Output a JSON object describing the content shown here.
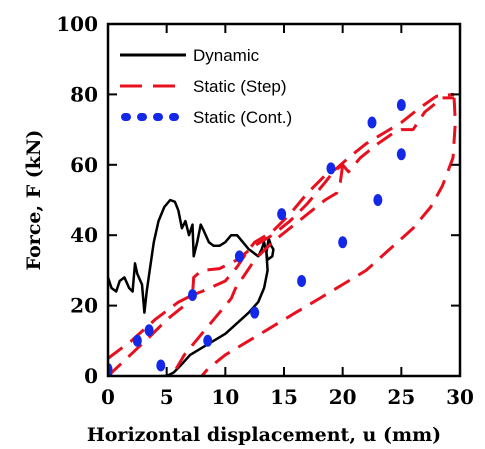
{
  "chart_data": {
    "type": "line",
    "xlabel": "Horizontal displacement, u (mm)",
    "ylabel": "Force, F (kN)",
    "xlim": [
      0,
      30
    ],
    "ylim": [
      0,
      100
    ],
    "xticks": [
      0,
      5,
      10,
      15,
      20,
      25,
      30
    ],
    "yticks": [
      0,
      20,
      40,
      60,
      80,
      100
    ],
    "xtick_labels": [
      "0",
      "5",
      "10",
      "15",
      "20",
      "25",
      "30"
    ],
    "ytick_labels": [
      "0",
      "20",
      "40",
      "60",
      "80",
      "100"
    ],
    "grid": false,
    "legend_position": "top-left",
    "series": [
      {
        "name": "Dynamic",
        "color": "#000000",
        "style": "solid",
        "points": [
          [
            0,
            28
          ],
          [
            0.3,
            25
          ],
          [
            0.7,
            24
          ],
          [
            1.0,
            27
          ],
          [
            1.4,
            28
          ],
          [
            1.8,
            25
          ],
          [
            2.1,
            24
          ],
          [
            2.3,
            32
          ],
          [
            2.5,
            29
          ],
          [
            2.9,
            26
          ],
          [
            3.1,
            18
          ],
          [
            3.3,
            24
          ],
          [
            3.6,
            31
          ],
          [
            3.9,
            38
          ],
          [
            4.3,
            44
          ],
          [
            4.8,
            48
          ],
          [
            5.3,
            50
          ],
          [
            5.7,
            49.5
          ],
          [
            6.0,
            47
          ],
          [
            6.3,
            42
          ],
          [
            6.6,
            44
          ],
          [
            6.9,
            40
          ],
          [
            7.2,
            43
          ],
          [
            7.3,
            34
          ],
          [
            7.6,
            38
          ],
          [
            7.9,
            43
          ],
          [
            8.2,
            41
          ],
          [
            8.6,
            38
          ],
          [
            9.0,
            37
          ],
          [
            9.5,
            37
          ],
          [
            10.0,
            38
          ],
          [
            10.5,
            40
          ],
          [
            11.0,
            40
          ],
          [
            11.5,
            38
          ],
          [
            12.0,
            36
          ],
          [
            12.4,
            35
          ],
          [
            12.8,
            34
          ],
          [
            13.1,
            36
          ],
          [
            13.3,
            38
          ],
          [
            13.5,
            35
          ],
          [
            13.7,
            39
          ],
          [
            13.9,
            37
          ],
          [
            14.1,
            36
          ],
          [
            14.0,
            34
          ],
          [
            13.6,
            33
          ],
          [
            13.5,
            35
          ],
          [
            13.6,
            30
          ],
          [
            13.3,
            25
          ],
          [
            12.8,
            21
          ],
          [
            12.0,
            18
          ],
          [
            11.0,
            15
          ],
          [
            10.0,
            12
          ],
          [
            9.0,
            10
          ],
          [
            8.0,
            8
          ],
          [
            7.0,
            6
          ],
          [
            6.2,
            3
          ],
          [
            5.6,
            1
          ],
          [
            5.0,
            0
          ],
          [
            4.5,
            0
          ]
        ]
      },
      {
        "name": "Static (Step)",
        "color": "#e8101e",
        "style": "dashed",
        "paths": [
          [
            [
              0,
              0
            ],
            [
              3.5,
              11
            ],
            [
              5,
              16
            ],
            [
              6.5,
              20
            ],
            [
              7.2,
              23
            ],
            [
              8,
              24
            ],
            [
              9,
              25.5
            ],
            [
              10,
              27
            ],
            [
              11,
              31
            ],
            [
              11.8,
              35
            ],
            [
              12.5,
              38
            ],
            [
              14,
              41
            ],
            [
              15.5,
              46
            ],
            [
              17,
              52
            ],
            [
              18.5,
              57
            ],
            [
              19.5,
              59
            ],
            [
              20.5,
              62
            ],
            [
              22,
              66
            ],
            [
              23.5,
              69
            ],
            [
              25,
              72
            ],
            [
              26.5,
              76
            ],
            [
              28,
              79.5
            ],
            [
              29.5,
              80
            ]
          ],
          [
            [
              0,
              5
            ],
            [
              2,
              10
            ],
            [
              4,
              16
            ],
            [
              6,
              21
            ],
            [
              7.2,
              23
            ],
            [
              7.3,
              28
            ],
            [
              8,
              30
            ],
            [
              9.5,
              30.5
            ],
            [
              11,
              33
            ],
            [
              12.5,
              37
            ],
            [
              13,
              38
            ],
            [
              14,
              40
            ],
            [
              15.5,
              44
            ],
            [
              17,
              49
            ],
            [
              18.5,
              55
            ],
            [
              19.2,
              58
            ],
            [
              20,
              60
            ],
            [
              20.5,
              58
            ],
            [
              21.5,
              62
            ],
            [
              23,
              66
            ],
            [
              24.5,
              69.5
            ],
            [
              25,
              70
            ],
            [
              26,
              70
            ],
            [
              27,
              75
            ],
            [
              28.5,
              79
            ],
            [
              29.5,
              79
            ]
          ],
          [
            [
              29.5,
              79
            ],
            [
              29.6,
              72
            ],
            [
              29.4,
              62
            ],
            [
              28.5,
              54
            ],
            [
              27.5,
              48
            ],
            [
              26,
              42
            ],
            [
              24,
              36
            ],
            [
              22,
              30
            ],
            [
              20,
              26
            ],
            [
              18,
              22
            ],
            [
              16,
              18
            ],
            [
              14,
              14
            ],
            [
              12,
              10
            ],
            [
              10,
              6
            ],
            [
              8.5,
              2
            ],
            [
              8,
              0
            ]
          ],
          [
            [
              20,
              60
            ],
            [
              19.8,
              55
            ],
            [
              19.5,
              52
            ],
            [
              19,
              51
            ],
            [
              18.5,
              50
            ],
            [
              17,
              46
            ],
            [
              15.5,
              42
            ],
            [
              14,
              38
            ],
            [
              12.5,
              33
            ],
            [
              11.5,
              28
            ],
            [
              11,
              26
            ],
            [
              10.5,
              22
            ],
            [
              9.5,
              18
            ],
            [
              8.5,
              14
            ],
            [
              7.5,
              10
            ],
            [
              6.5,
              6
            ],
            [
              5.8,
              2
            ],
            [
              5.5,
              0
            ]
          ]
        ]
      },
      {
        "name": "Static (Cont.)",
        "color": "#1428e8",
        "style": "dotted",
        "points": [
          [
            0,
            0
          ],
          [
            0,
            2
          ],
          [
            2.5,
            10
          ],
          [
            3.5,
            13
          ],
          [
            7.2,
            23
          ],
          [
            11.2,
            34
          ],
          [
            14.8,
            46
          ],
          [
            19,
            59
          ],
          [
            22.5,
            72
          ],
          [
            25,
            77
          ],
          [
            25,
            63
          ],
          [
            23,
            50
          ],
          [
            20,
            38
          ],
          [
            16.5,
            27
          ],
          [
            12.5,
            18
          ],
          [
            8.5,
            10
          ],
          [
            4.5,
            3
          ]
        ]
      }
    ]
  }
}
